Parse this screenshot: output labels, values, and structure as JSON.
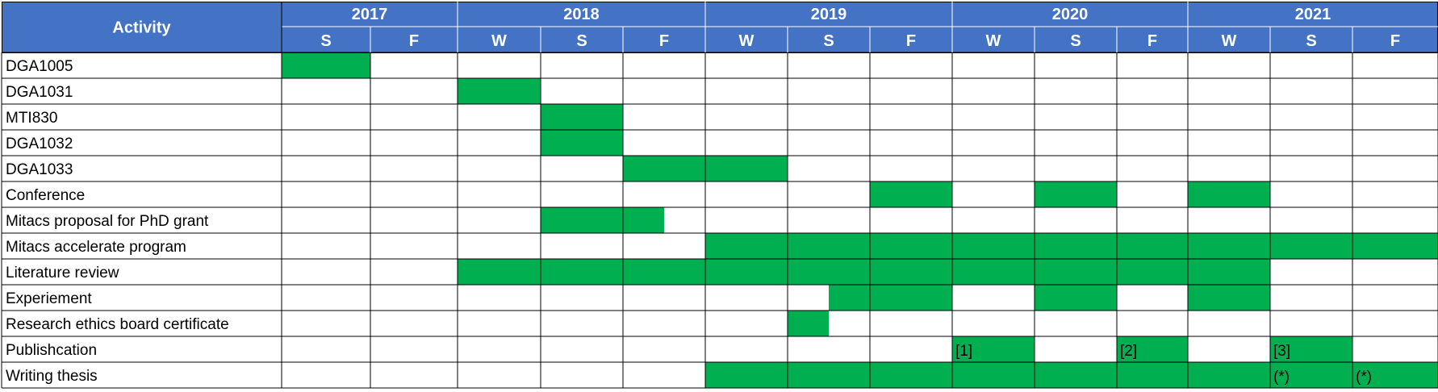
{
  "chart_data": {
    "type": "gantt",
    "header_label": "Activity",
    "years": [
      {
        "label": "2017",
        "span": 2
      },
      {
        "label": "2018",
        "span": 3
      },
      {
        "label": "2019",
        "span": 3
      },
      {
        "label": "2020",
        "span": 3
      },
      {
        "label": "2021",
        "span": 3
      }
    ],
    "terms": [
      "S",
      "F",
      "W",
      "S",
      "F",
      "W",
      "S",
      "F",
      "W",
      "S",
      "F",
      "W",
      "S",
      "F"
    ],
    "colors": {
      "header": "#4472C4",
      "bar": "#00B050",
      "grid": "#000000",
      "header_grid": "#ffffff"
    },
    "rows": [
      {
        "label": "DGA1005",
        "segments": [
          {
            "start": 0,
            "end": 1
          }
        ]
      },
      {
        "label": "DGA1031",
        "segments": [
          {
            "start": 2,
            "end": 3
          }
        ]
      },
      {
        "label": "MTI830",
        "segments": [
          {
            "start": 3,
            "end": 4
          }
        ]
      },
      {
        "label": "DGA1032",
        "segments": [
          {
            "start": 3,
            "end": 4
          }
        ]
      },
      {
        "label": "DGA1033",
        "segments": [
          {
            "start": 4,
            "end": 6
          }
        ]
      },
      {
        "label": "Conference",
        "segments": [
          {
            "start": 7,
            "end": 8
          },
          {
            "start": 9,
            "end": 10
          },
          {
            "start": 11,
            "end": 12
          }
        ]
      },
      {
        "label": "Mitacs proposal for PhD grant",
        "segments": [
          {
            "start": 3,
            "end": 4.5
          }
        ]
      },
      {
        "label": "Mitacs accelerate program",
        "segments": [
          {
            "start": 5,
            "end": 14
          }
        ]
      },
      {
        "label": "Literature review",
        "segments": [
          {
            "start": 2,
            "end": 12
          }
        ]
      },
      {
        "label": "Experiement",
        "segments": [
          {
            "start": 6.5,
            "end": 8
          },
          {
            "start": 9,
            "end": 10
          },
          {
            "start": 11,
            "end": 12
          }
        ]
      },
      {
        "label": "Research ethics board certificate",
        "segments": [
          {
            "start": 6,
            "end": 6.5
          }
        ]
      },
      {
        "label": "Publishcation",
        "segments": [
          {
            "start": 8,
            "end": 9,
            "note": "[1]"
          },
          {
            "start": 10,
            "end": 11,
            "note": "[2]"
          },
          {
            "start": 12,
            "end": 13,
            "note": "[3]"
          }
        ]
      },
      {
        "label": "Writing thesis",
        "segments": [
          {
            "start": 5,
            "end": 12
          },
          {
            "start": 12,
            "end": 13,
            "note": "(*)"
          },
          {
            "start": 13,
            "end": 14,
            "note": "(*)"
          }
        ]
      }
    ]
  }
}
